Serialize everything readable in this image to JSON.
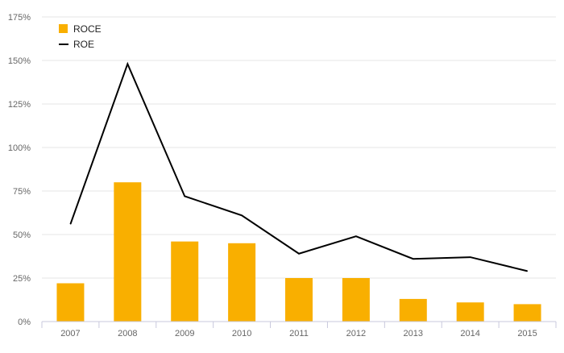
{
  "chart_data": {
    "type": "bar",
    "categories": [
      "2007",
      "2008",
      "2009",
      "2010",
      "2011",
      "2012",
      "2013",
      "2014",
      "2015"
    ],
    "series": [
      {
        "name": "ROCE",
        "type": "bar",
        "values": [
          22,
          80,
          46,
          45,
          25,
          25,
          13,
          11,
          10
        ],
        "color": "#F9AF00"
      },
      {
        "name": "ROE",
        "type": "line",
        "values": [
          56,
          148,
          72,
          61,
          39,
          49,
          36,
          37,
          29
        ],
        "color": "#000000"
      }
    ],
    "y_ticks": [
      "0%",
      "25%",
      "50%",
      "75%",
      "100%",
      "125%",
      "150%",
      "175%"
    ],
    "ylim": [
      0,
      175
    ],
    "y_unit": "percent",
    "grid": true,
    "legend_position": "top-left",
    "title": "",
    "xlabel": "",
    "ylabel": ""
  }
}
